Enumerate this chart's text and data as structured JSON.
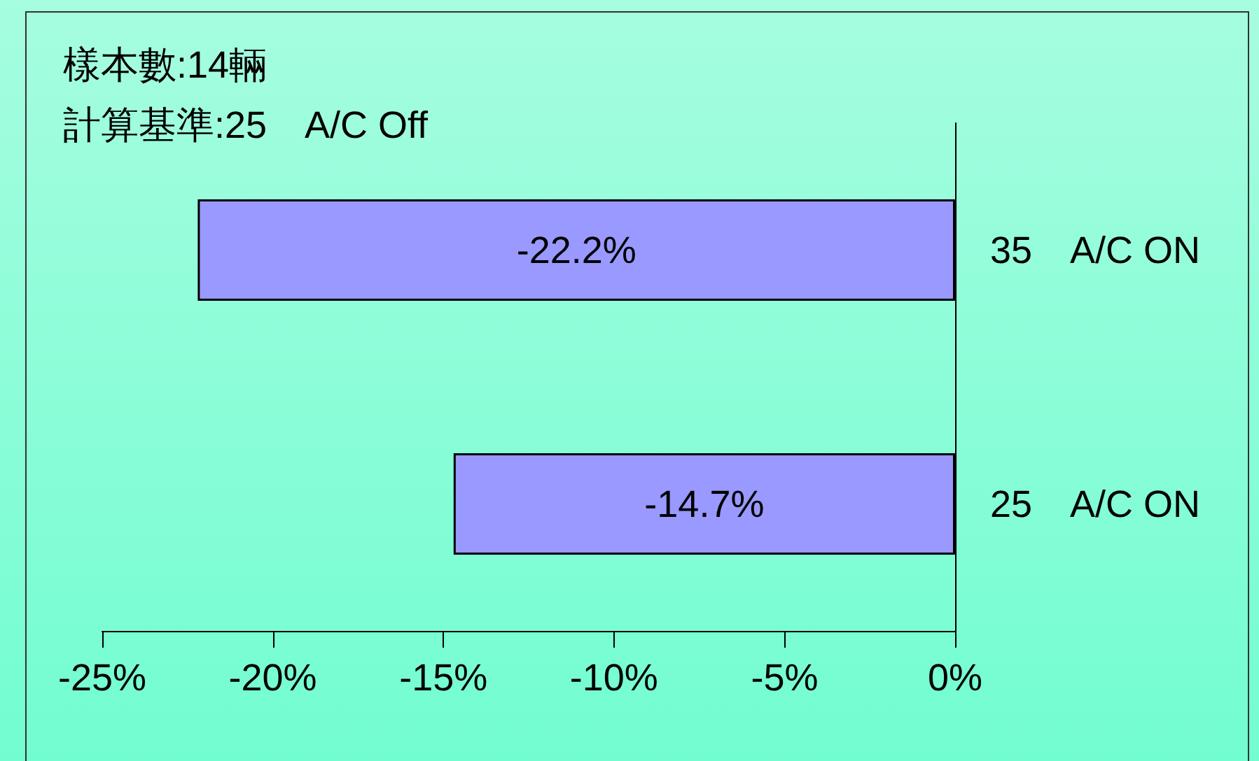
{
  "chart_data": {
    "type": "bar",
    "orientation": "horizontal",
    "title": "樣本數:14輛",
    "subtitle": "計算基準:25　A/C Off",
    "categories": [
      "35　A/C ON",
      "25　A/C ON"
    ],
    "values": [
      -22.2,
      -14.7
    ],
    "value_labels": [
      "-22.2%",
      "-14.7%"
    ],
    "color": "#9999ff",
    "xlim": [
      -25,
      0
    ],
    "xticks": [
      {
        "value": -25,
        "label": "-25%"
      },
      {
        "value": -20,
        "label": "-20%"
      },
      {
        "value": -15,
        "label": "-15%"
      },
      {
        "value": -10,
        "label": "-10%"
      },
      {
        "value": -5,
        "label": "-5%"
      },
      {
        "value": 0,
        "label": "0%"
      }
    ],
    "grid": false
  }
}
